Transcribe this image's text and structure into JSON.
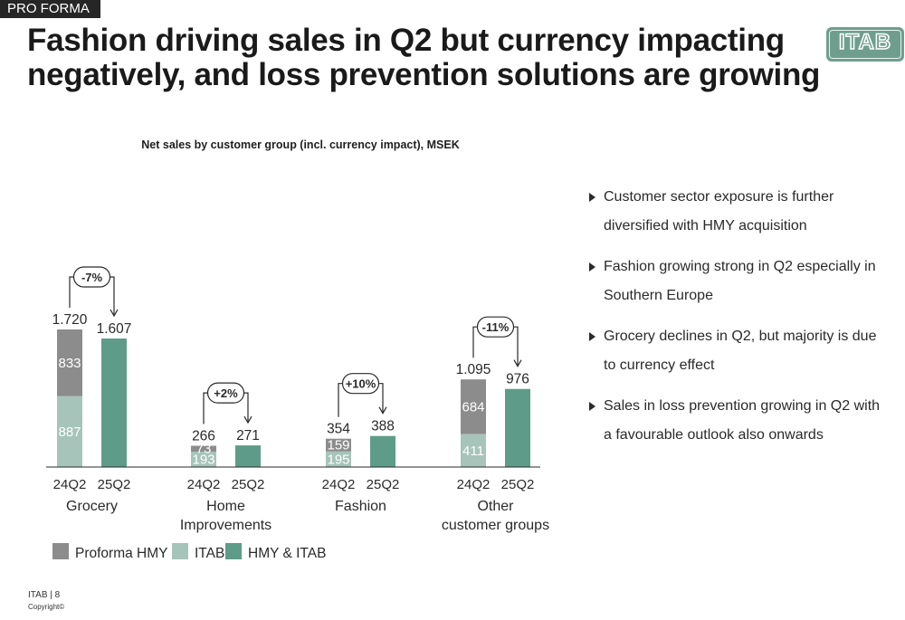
{
  "header": {
    "tag": "PRO FORMA",
    "title_line1": "Fashion driving sales in Q2 but currency impacting",
    "title_line2": "negatively, and loss prevention solutions are growing",
    "logo": "ITAB"
  },
  "colors": {
    "hmy": "#8c8c8c",
    "itab": "#a6c4ba",
    "combined": "#5e9c89",
    "accent": "#6f9e8f"
  },
  "chart_data": {
    "type": "bar",
    "title": "Net sales by customer group (incl. currency impact), MSEK",
    "groups": [
      {
        "label_lines": [
          "Grocery"
        ],
        "change": "-7%",
        "bars": [
          {
            "period": "24Q2",
            "total": "1.720",
            "total_value": 1720,
            "segments": [
              {
                "series": "ITAB",
                "value": 887
              },
              {
                "series": "Proforma HMY",
                "value": 833
              }
            ]
          },
          {
            "period": "25Q2",
            "total": "1.607",
            "total_value": 1607,
            "segments": [
              {
                "series": "HMY & ITAB",
                "value": 1607
              }
            ]
          }
        ]
      },
      {
        "label_lines": [
          "Home",
          "Improvements"
        ],
        "change": "+2%",
        "bars": [
          {
            "period": "24Q2",
            "total": "266",
            "total_value": 266,
            "segments": [
              {
                "series": "ITAB",
                "value": 193
              },
              {
                "series": "Proforma HMY",
                "value": 73
              }
            ]
          },
          {
            "period": "25Q2",
            "total": "271",
            "total_value": 271,
            "segments": [
              {
                "series": "HMY & ITAB",
                "value": 271
              }
            ]
          }
        ]
      },
      {
        "label_lines": [
          "Fashion"
        ],
        "change": "+10%",
        "bars": [
          {
            "period": "24Q2",
            "total": "354",
            "total_value": 354,
            "segments": [
              {
                "series": "ITAB",
                "value": 195
              },
              {
                "series": "Proforma HMY",
                "value": 159
              }
            ]
          },
          {
            "period": "25Q2",
            "total": "388",
            "total_value": 388,
            "segments": [
              {
                "series": "HMY & ITAB",
                "value": 388
              }
            ]
          }
        ]
      },
      {
        "label_lines": [
          "Other",
          "customer groups"
        ],
        "change": "-11%",
        "bars": [
          {
            "period": "24Q2",
            "total": "1.095",
            "total_value": 1095,
            "segments": [
              {
                "series": "ITAB",
                "value": 411
              },
              {
                "series": "Proforma HMY",
                "value": 684
              }
            ]
          },
          {
            "period": "25Q2",
            "total": "976",
            "total_value": 976,
            "segments": [
              {
                "series": "HMY & ITAB",
                "value": 976
              }
            ]
          }
        ]
      }
    ],
    "legend": [
      {
        "name": "Proforma HMY",
        "color": "#8c8c8c"
      },
      {
        "name": "ITAB",
        "color": "#a6c4ba"
      },
      {
        "name": "HMY & ITAB",
        "color": "#5e9c89"
      }
    ],
    "legend_position": "bottom-left",
    "ylim": [
      0,
      1720
    ]
  },
  "bullets": [
    "Customer sector exposure is further diversified with HMY acquisition",
    "Fashion growing strong in Q2 especially in Southern Europe",
    "Grocery declines in Q2, but majority is due to currency effect",
    "Sales in loss prevention growing in Q2 with a favourable outlook also onwards"
  ],
  "footer": {
    "page": "ITAB | 8",
    "copyright": "Copyright©"
  }
}
